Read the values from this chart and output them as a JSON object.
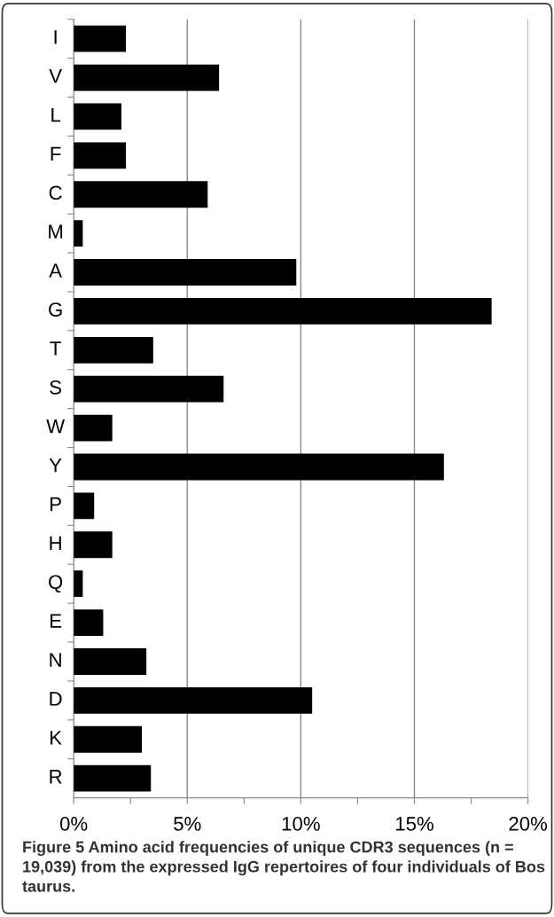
{
  "chart_data": {
    "type": "bar",
    "orientation": "horizontal",
    "categories": [
      "I",
      "V",
      "L",
      "F",
      "C",
      "M",
      "A",
      "G",
      "T",
      "S",
      "W",
      "Y",
      "P",
      "H",
      "Q",
      "E",
      "N",
      "D",
      "K",
      "R"
    ],
    "values": [
      2.3,
      6.4,
      2.1,
      2.3,
      5.9,
      0.4,
      9.8,
      18.4,
      3.5,
      6.6,
      1.7,
      16.3,
      0.9,
      1.7,
      0.4,
      1.3,
      3.2,
      10.5,
      3.0,
      3.4
    ],
    "color": "#000000",
    "xlim": [
      0,
      20
    ],
    "xticks": [
      {
        "value": 0,
        "label": "0%"
      },
      {
        "value": 2.5,
        "label": null
      },
      {
        "value": 5,
        "label": "5%"
      },
      {
        "value": 7.5,
        "label": null
      },
      {
        "value": 10,
        "label": "10%"
      },
      {
        "value": 12.5,
        "label": null
      },
      {
        "value": 15,
        "label": "15%"
      },
      {
        "value": 17.5,
        "label": null
      },
      {
        "value": 20,
        "label": "20%"
      }
    ],
    "grid": "x",
    "annotations": [
      "Figure 5 Amino acid frequencies of unique CDR3 sequences (n = 19,039) from the expressed IgG repertoires of four individuals of Bos taurus."
    ]
  }
}
